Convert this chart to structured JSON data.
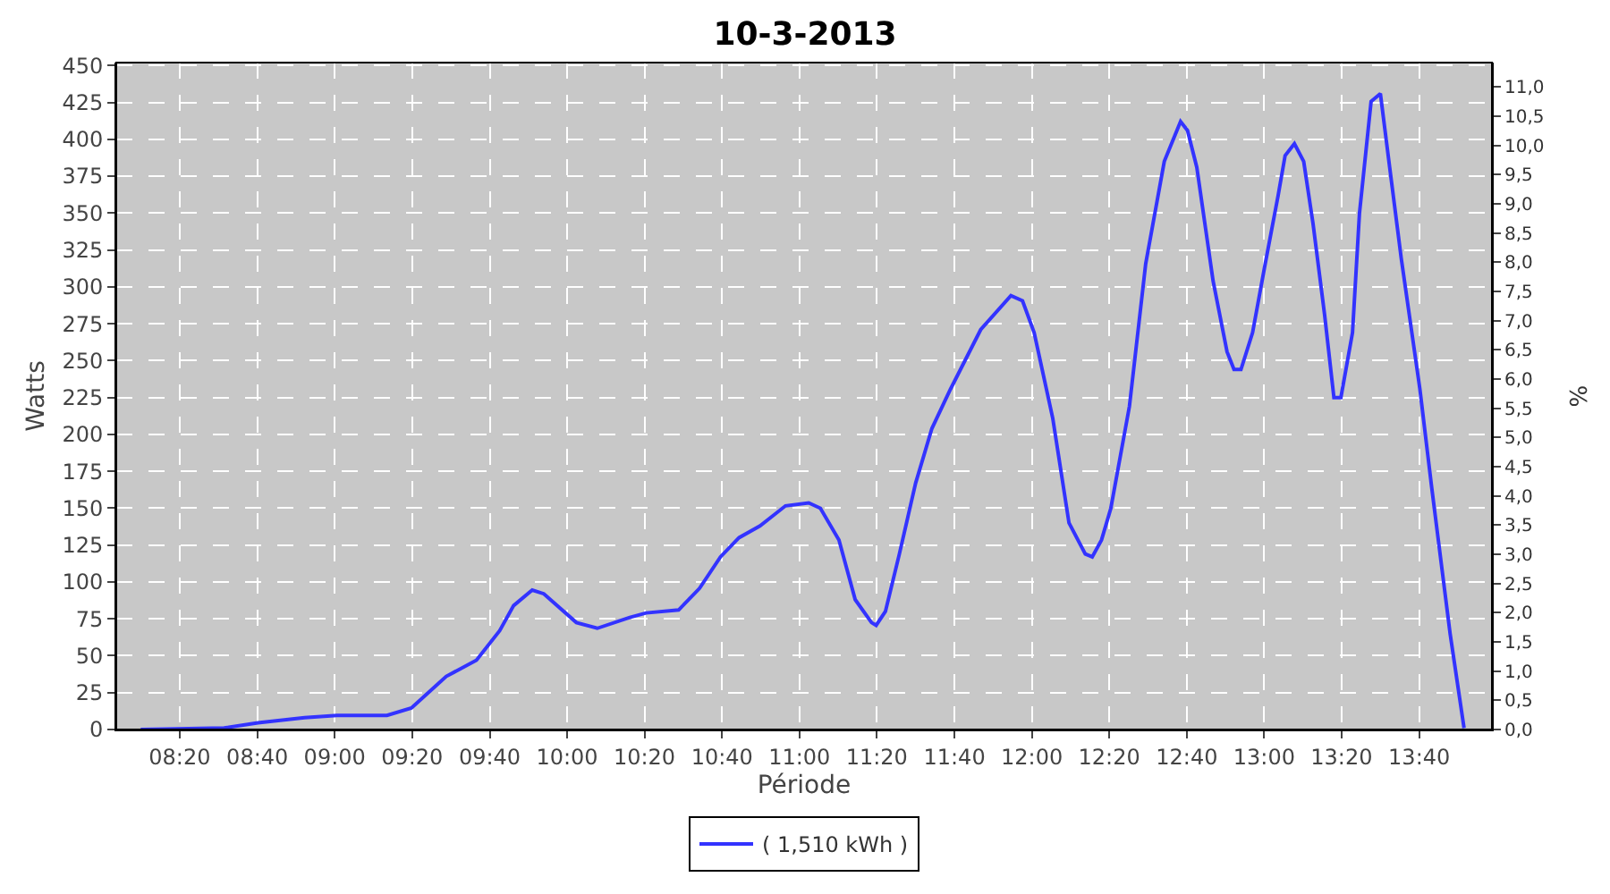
{
  "chart_data": {
    "type": "line",
    "title": "10-3-2013",
    "xlabel": "Période",
    "ylabel": "Watts",
    "y2label": "%",
    "series": [
      {
        "name": "( 1,510 kWh )",
        "color": "#3333ff",
        "x": [
          8.165,
          8.524,
          8.67,
          8.87,
          9.01,
          9.225,
          9.33,
          9.48,
          9.61,
          9.71,
          9.77,
          9.85,
          9.9,
          10.04,
          10.13,
          10.27,
          10.34,
          10.48,
          10.57,
          10.66,
          10.74,
          10.83,
          10.94,
          11.04,
          11.09,
          11.17,
          11.24,
          11.31,
          11.33,
          11.37,
          11.43,
          11.5,
          11.57,
          11.65,
          11.78,
          11.91,
          11.96,
          12.01,
          12.09,
          12.16,
          12.23,
          12.26,
          12.3,
          12.34,
          12.42,
          12.49,
          12.57,
          12.64,
          12.67,
          12.71,
          12.78,
          12.84,
          12.87,
          12.9,
          12.95,
          13.0,
          13.06,
          13.09,
          13.13,
          13.17,
          13.21,
          13.26,
          13.3,
          13.33,
          13.38,
          13.41,
          13.46,
          13.5,
          13.54,
          13.59,
          13.67,
          13.72,
          13.8,
          13.86
        ],
        "values": [
          0,
          1,
          4.6,
          8,
          9.6,
          9.6,
          14.6,
          36,
          47,
          67,
          84,
          94.5,
          92,
          72.5,
          68.6,
          76,
          79,
          81,
          95.7,
          117,
          130,
          138,
          151.6,
          153.6,
          150,
          128.5,
          88,
          72.5,
          70.6,
          80,
          119,
          167,
          204,
          230.7,
          271,
          294,
          290.5,
          269,
          211,
          140,
          119,
          117,
          128.5,
          150,
          219,
          315.6,
          385,
          412,
          406,
          381,
          304,
          256,
          244,
          244,
          269,
          312,
          362,
          389,
          397,
          385,
          343,
          281,
          225,
          225,
          269,
          350,
          425.6,
          431,
          381,
          319,
          230.7,
          165,
          65,
          1
        ]
      }
    ],
    "xlim": [
      8.06,
      13.98
    ],
    "xticks": [
      {
        "value": 8.333,
        "label": "08:20"
      },
      {
        "value": 8.667,
        "label": "08:40"
      },
      {
        "value": 9.0,
        "label": "09:00"
      },
      {
        "value": 9.333,
        "label": "09:20"
      },
      {
        "value": 9.667,
        "label": "09:40"
      },
      {
        "value": 10.0,
        "label": "10:00"
      },
      {
        "value": 10.333,
        "label": "10:20"
      },
      {
        "value": 10.667,
        "label": "10:40"
      },
      {
        "value": 11.0,
        "label": "11:00"
      },
      {
        "value": 11.333,
        "label": "11:20"
      },
      {
        "value": 11.667,
        "label": "11:40"
      },
      {
        "value": 12.0,
        "label": "12:00"
      },
      {
        "value": 12.333,
        "label": "12:20"
      },
      {
        "value": 12.667,
        "label": "12:40"
      },
      {
        "value": 13.0,
        "label": "13:00"
      },
      {
        "value": 13.333,
        "label": "13:20"
      },
      {
        "value": 13.667,
        "label": "13:40"
      }
    ],
    "ylim": [
      0,
      452
    ],
    "yticks": [
      0,
      25,
      50,
      75,
      100,
      125,
      150,
      175,
      200,
      225,
      250,
      275,
      300,
      325,
      350,
      375,
      400,
      425,
      450
    ],
    "y2lim": [
      0,
      11.42
    ],
    "y2ticks": [
      {
        "value": 0,
        "label": "0,0"
      },
      {
        "value": 0.5,
        "label": "0,5"
      },
      {
        "value": 1,
        "label": "1,0"
      },
      {
        "value": 1.5,
        "label": "1,5"
      },
      {
        "value": 2,
        "label": "2,0"
      },
      {
        "value": 2.5,
        "label": "2,5"
      },
      {
        "value": 3,
        "label": "3,0"
      },
      {
        "value": 3.5,
        "label": "3,5"
      },
      {
        "value": 4,
        "label": "4,0"
      },
      {
        "value": 4.5,
        "label": "4,5"
      },
      {
        "value": 5,
        "label": "5,0"
      },
      {
        "value": 5.5,
        "label": "5,5"
      },
      {
        "value": 6,
        "label": "6,0"
      },
      {
        "value": 6.5,
        "label": "6,5"
      },
      {
        "value": 7,
        "label": "7,0"
      },
      {
        "value": 7.5,
        "label": "7,5"
      },
      {
        "value": 8,
        "label": "8,0"
      },
      {
        "value": 8.5,
        "label": "8,5"
      },
      {
        "value": 9,
        "label": "9,0"
      },
      {
        "value": 9.5,
        "label": "9,5"
      },
      {
        "value": 10,
        "label": "10,0"
      },
      {
        "value": 10.5,
        "label": "10,5"
      },
      {
        "value": 11,
        "label": "11,0"
      }
    ],
    "grid": true,
    "legend": "bottom",
    "marker": "none",
    "line_style": "solid"
  }
}
